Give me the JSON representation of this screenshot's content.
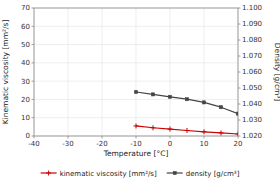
{
  "chart_data": {
    "type": "line",
    "xlabel": "Temperature [°C]",
    "ylabel": "Kinematic viscosity [mm²/s]",
    "y2label": "Density [g/cm³]",
    "x": [
      -10,
      -5,
      0,
      5,
      10,
      15,
      20
    ],
    "xlim": [
      -40,
      20
    ],
    "xticks": [
      -40,
      -30,
      -20,
      -10,
      0,
      10,
      20
    ],
    "ylim": [
      0,
      70
    ],
    "yticks": [
      0,
      10,
      20,
      30,
      40,
      50,
      60,
      70
    ],
    "y2lim": [
      1.02,
      1.1
    ],
    "y2ticks": [
      {
        "value": 1.02,
        "label": "1.020"
      },
      {
        "value": 1.03,
        "label": "1.030"
      },
      {
        "value": 1.04,
        "label": "1.040"
      },
      {
        "value": 1.05,
        "label": "1.050"
      },
      {
        "value": 1.06,
        "label": "1.060"
      },
      {
        "value": 1.07,
        "label": "1.070"
      },
      {
        "value": 1.08,
        "label": "1.080"
      },
      {
        "value": 1.09,
        "label": "1.090"
      },
      {
        "value": 1.1,
        "label": "1.100"
      }
    ],
    "series": [
      {
        "name": "kinematic viscosity [mm²/s]",
        "color": "#cc0000",
        "marker": "plus",
        "values": [
          5.5,
          4.5,
          3.8,
          3.0,
          2.3,
          1.7,
          1.1
        ]
      },
      {
        "name": "density [g/cm³]",
        "color": "#444444",
        "marker": "square",
        "axis": "y2",
        "values": [
          1.0475,
          1.046,
          1.0445,
          1.043,
          1.041,
          1.038,
          1.034
        ]
      }
    ],
    "grid": true,
    "legend": "bottom"
  }
}
